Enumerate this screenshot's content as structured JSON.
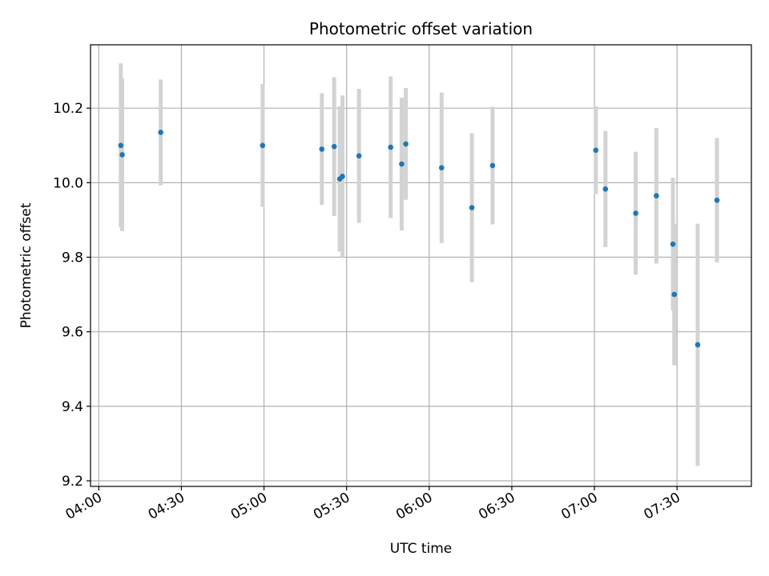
{
  "chart_data": {
    "type": "scatter",
    "title": "Photometric offset variation",
    "xlabel": "UTC time",
    "ylabel": "Photometric offset",
    "x_is_time": true,
    "xlim": [
      "03:57",
      "07:57"
    ],
    "ylim": [
      9.185,
      10.37
    ],
    "x_ticks": [
      "04:00",
      "04:30",
      "05:00",
      "05:30",
      "06:00",
      "06:30",
      "07:00",
      "07:30"
    ],
    "y_ticks": [
      9.2,
      9.4,
      9.6,
      9.8,
      10.0,
      10.2
    ],
    "y_tick_labels": [
      "9.2",
      "9.4",
      "9.6",
      "9.8",
      "10.0",
      "10.2"
    ],
    "grid": true,
    "marker_color": "#1f77b4",
    "errorbar_color": "#d3d3d3",
    "series": [
      {
        "points": [
          {
            "t": "04:08:00",
            "y": 10.1,
            "err": 0.22
          },
          {
            "t": "04:08:30",
            "y": 10.075,
            "err": 0.205
          },
          {
            "t": "04:22:30",
            "y": 10.135,
            "err": 0.142
          },
          {
            "t": "04:59:30",
            "y": 10.1,
            "err": 0.165
          },
          {
            "t": "05:21:00",
            "y": 10.09,
            "err": 0.15
          },
          {
            "t": "05:25:30",
            "y": 10.097,
            "err": 0.186
          },
          {
            "t": "05:27:30",
            "y": 10.01,
            "err": 0.195
          },
          {
            "t": "05:28:30",
            "y": 10.017,
            "err": 0.217
          },
          {
            "t": "05:34:30",
            "y": 10.072,
            "err": 0.18
          },
          {
            "t": "05:46:00",
            "y": 10.095,
            "err": 0.19
          },
          {
            "t": "05:50:00",
            "y": 10.05,
            "err": 0.178
          },
          {
            "t": "05:51:30",
            "y": 10.104,
            "err": 0.15
          },
          {
            "t": "06:04:30",
            "y": 10.04,
            "err": 0.202
          },
          {
            "t": "06:15:30",
            "y": 9.933,
            "err": 0.2
          },
          {
            "t": "06:23:00",
            "y": 10.046,
            "err": 0.158
          },
          {
            "t": "07:00:30",
            "y": 10.087,
            "err": 0.118
          },
          {
            "t": "07:04:00",
            "y": 9.983,
            "err": 0.156
          },
          {
            "t": "07:15:00",
            "y": 9.918,
            "err": 0.165
          },
          {
            "t": "07:22:30",
            "y": 9.965,
            "err": 0.182
          },
          {
            "t": "07:28:30",
            "y": 9.835,
            "err": 0.178
          },
          {
            "t": "07:29:00",
            "y": 9.7,
            "err": 0.19
          },
          {
            "t": "07:37:30",
            "y": 9.565,
            "err": 0.325
          },
          {
            "t": "07:44:30",
            "y": 9.953,
            "err": 0.167
          }
        ]
      }
    ]
  }
}
